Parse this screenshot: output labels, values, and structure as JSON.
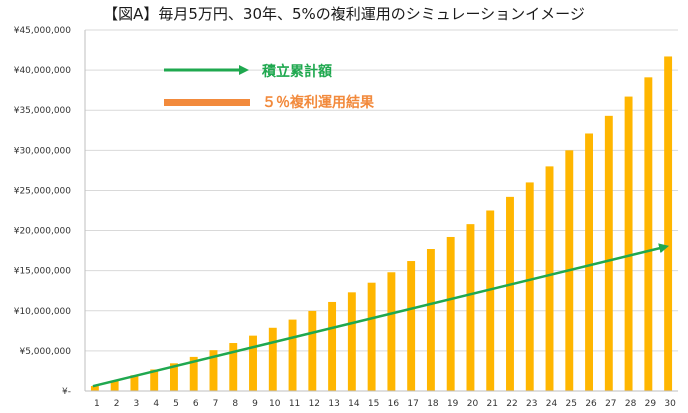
{
  "chart_data": {
    "type": "bar",
    "title": "【図A】毎月5万円、30年、5%の複利運用のシミュレーションイメージ",
    "xlabel": "",
    "ylabel": "",
    "categories": [
      "1",
      "2",
      "3",
      "4",
      "5",
      "6",
      "7",
      "8",
      "9",
      "10",
      "11",
      "12",
      "13",
      "14",
      "15",
      "16",
      "17",
      "18",
      "19",
      "20",
      "21",
      "22",
      "23",
      "24",
      "25",
      "26",
      "27",
      "28",
      "29",
      "30"
    ],
    "ylim": [
      0,
      45000000
    ],
    "yticks": [
      {
        "value": 0,
        "label": "¥-"
      },
      {
        "value": 5000000,
        "label": "¥5,000,000"
      },
      {
        "value": 10000000,
        "label": "¥10,000,000"
      },
      {
        "value": 15000000,
        "label": "¥15,000,000"
      },
      {
        "value": 20000000,
        "label": "¥20,000,000"
      },
      {
        "value": 25000000,
        "label": "¥25,000,000"
      },
      {
        "value": 30000000,
        "label": "¥30,000,000"
      },
      {
        "value": 35000000,
        "label": "¥35,000,000"
      },
      {
        "value": 40000000,
        "label": "¥40,000,000"
      },
      {
        "value": 45000000,
        "label": "¥45,000,000"
      }
    ],
    "grid": true,
    "series": [
      {
        "name": "５％複利運用結果",
        "type": "bar",
        "color": "#FFB600",
        "values": [
          620000,
          1270000,
          1960000,
          2680000,
          3450000,
          4250000,
          5090000,
          5980000,
          6900000,
          7880000,
          8900000,
          9980000,
          11100000,
          12300000,
          13500000,
          14800000,
          16200000,
          17700000,
          19200000,
          20800000,
          22500000,
          24200000,
          26000000,
          28000000,
          30000000,
          32100000,
          34300000,
          36700000,
          39100000,
          41700000
        ]
      },
      {
        "name": "積立累計額",
        "type": "line",
        "color": "#1FA84F",
        "values": [
          600000,
          1200000,
          1800000,
          2400000,
          3000000,
          3600000,
          4200000,
          4800000,
          5400000,
          6000000,
          6600000,
          7200000,
          7800000,
          8400000,
          9000000,
          9600000,
          10200000,
          10800000,
          11400000,
          12000000,
          12600000,
          13200000,
          13800000,
          14400000,
          15000000,
          15600000,
          16200000,
          16800000,
          17400000,
          18000000
        ]
      }
    ],
    "legend": {
      "placement": "top-left",
      "items": [
        {
          "label": "積立累計額",
          "color": "#1FA84F",
          "marker": "arrow"
        },
        {
          "label": "５％複利運用結果",
          "color": "#F28A3C",
          "marker": "bar"
        }
      ]
    }
  }
}
